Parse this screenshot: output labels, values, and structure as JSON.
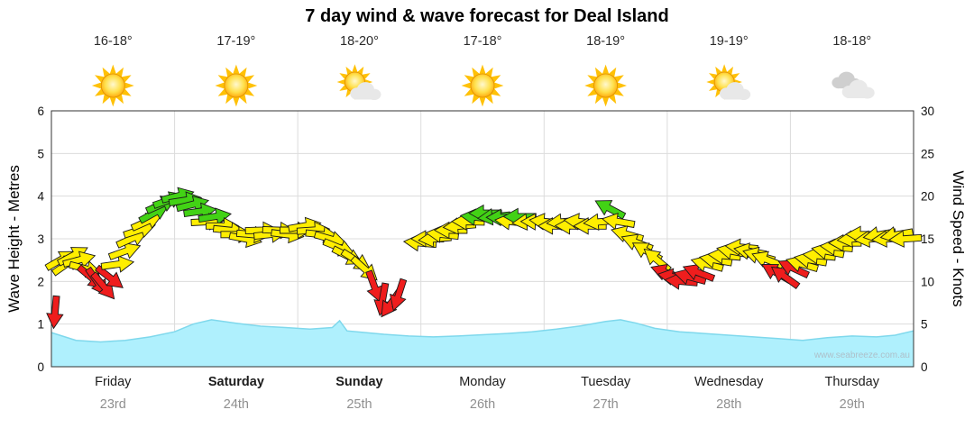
{
  "title": "7 day wind & wave forecast for Deal Island",
  "watermark": "www.seabreeze.com.au",
  "axes": {
    "left_title": "Wave Height - Metres",
    "right_title": "Wind Speed - Knots",
    "left_ticks": [
      0,
      1,
      2,
      3,
      4,
      5,
      6
    ],
    "right_ticks": [
      0,
      5,
      10,
      15,
      20,
      25,
      30
    ]
  },
  "days": [
    {
      "name": "Friday",
      "date": "23rd",
      "temp": "16-18°",
      "icon": "sunny",
      "weekend": false
    },
    {
      "name": "Saturday",
      "date": "24th",
      "temp": "17-19°",
      "icon": "sunny",
      "weekend": true
    },
    {
      "name": "Sunday",
      "date": "25th",
      "temp": "18-20°",
      "icon": "partly-cloudy",
      "weekend": true
    },
    {
      "name": "Monday",
      "date": "26th",
      "temp": "17-18°",
      "icon": "sunny",
      "weekend": false
    },
    {
      "name": "Tuesday",
      "date": "27th",
      "temp": "18-19°",
      "icon": "sunny",
      "weekend": false
    },
    {
      "name": "Wednesday",
      "date": "28th",
      "temp": "19-19°",
      "icon": "partly-cloudy",
      "weekend": false
    },
    {
      "name": "Thursday",
      "date": "29th",
      "temp": "18-18°",
      "icon": "cloudy",
      "weekend": false
    }
  ],
  "colors": {
    "yellow": "#ffee00",
    "red": "#ef1d1d",
    "green": "#42d215",
    "wave_fill": "#aff0fd",
    "wave_line": "#7fd8ec",
    "grid": "#dcdcdc",
    "frame": "#333333",
    "tick_text": "#111111"
  },
  "chart_data": {
    "type": "combo",
    "description": "7-day marine forecast: cyan area = wave height (m, left axis 0-6); colored arrows = wind speed (knots, right axis 0-30) and direction; arrow color: red < ~11 kn, yellow ~11-17 kn, green > ~17.5 kn",
    "categories": [
      "Friday 23rd",
      "Saturday 24th",
      "Sunday 25th",
      "Monday 26th",
      "Tuesday 27th",
      "Wednesday 28th",
      "Thursday 29th"
    ],
    "x_unit": "days from start of Friday 23rd (0 to 7)",
    "wave_height_m": {
      "ylim": [
        0,
        6
      ],
      "x": [
        0,
        0.2,
        0.4,
        0.6,
        0.8,
        1.0,
        1.15,
        1.3,
        1.5,
        1.7,
        1.9,
        2.1,
        2.28,
        2.34,
        2.4,
        2.55,
        2.7,
        2.9,
        3.1,
        3.3,
        3.5,
        3.7,
        3.9,
        4.1,
        4.3,
        4.5,
        4.62,
        4.75,
        4.9,
        5.1,
        5.3,
        5.5,
        5.7,
        5.9,
        6.1,
        6.3,
        6.5,
        6.7,
        6.85,
        7.0
      ],
      "y": [
        0.8,
        0.62,
        0.58,
        0.62,
        0.7,
        0.82,
        1.0,
        1.1,
        1.02,
        0.95,
        0.92,
        0.88,
        0.92,
        1.08,
        0.84,
        0.8,
        0.76,
        0.72,
        0.7,
        0.72,
        0.75,
        0.78,
        0.82,
        0.88,
        0.96,
        1.06,
        1.1,
        1.02,
        0.9,
        0.82,
        0.78,
        0.74,
        0.7,
        0.66,
        0.62,
        0.68,
        0.72,
        0.7,
        0.74,
        0.84
      ]
    },
    "wind_knots": {
      "ylim": [
        0,
        30
      ],
      "dir_convention": "degrees clockwise from east; arrow points where wind blows toward",
      "color_legend": {
        "y": "yellow",
        "r": "red",
        "g": "green"
      },
      "arrows": [
        [
          0.03,
          6.5,
          95,
          "r"
        ],
        [
          0.07,
          12.5,
          330,
          "y"
        ],
        [
          0.12,
          12,
          325,
          "y"
        ],
        [
          0.17,
          13,
          332,
          "y"
        ],
        [
          0.22,
          12.5,
          345,
          "y"
        ],
        [
          0.27,
          11.5,
          15,
          "y"
        ],
        [
          0.32,
          10.5,
          40,
          "r"
        ],
        [
          0.37,
          10,
          55,
          "r"
        ],
        [
          0.42,
          9.5,
          50,
          "r"
        ],
        [
          0.47,
          10.5,
          38,
          "r"
        ],
        [
          0.53,
          12,
          352,
          "y"
        ],
        [
          0.59,
          13.5,
          340,
          "y"
        ],
        [
          0.65,
          15,
          336,
          "y"
        ],
        [
          0.71,
          16,
          342,
          "y"
        ],
        [
          0.77,
          17,
          336,
          "y"
        ],
        [
          0.83,
          18,
          331,
          "g"
        ],
        [
          0.89,
          19,
          336,
          "g"
        ],
        [
          0.95,
          19.5,
          341,
          "g"
        ],
        [
          1.02,
          20,
          346,
          "g"
        ],
        [
          1.08,
          19.5,
          351,
          "g"
        ],
        [
          1.14,
          19,
          346,
          "g"
        ],
        [
          1.2,
          18.2,
          352,
          "g"
        ],
        [
          1.26,
          17,
          357,
          "y"
        ],
        [
          1.32,
          17.6,
          351,
          "g"
        ],
        [
          1.38,
          16.5,
          0,
          "y"
        ],
        [
          1.44,
          16,
          6,
          "y"
        ],
        [
          1.5,
          15.5,
          0,
          "y"
        ],
        [
          1.57,
          15,
          11,
          "y"
        ],
        [
          1.63,
          15.5,
          5,
          "y"
        ],
        [
          1.7,
          16,
          358,
          "y"
        ],
        [
          1.77,
          15.5,
          354,
          "y"
        ],
        [
          1.84,
          16,
          2,
          "y"
        ],
        [
          1.91,
          15.5,
          7,
          "y"
        ],
        [
          1.98,
          16,
          0,
          "y"
        ],
        [
          2.05,
          16.5,
          350,
          "y"
        ],
        [
          2.12,
          16,
          356,
          "y"
        ],
        [
          2.19,
          15.5,
          6,
          "y"
        ],
        [
          2.26,
          15,
          16,
          "y"
        ],
        [
          2.33,
          14,
          22,
          "y"
        ],
        [
          2.4,
          13,
          27,
          "y"
        ],
        [
          2.47,
          12.5,
          33,
          "y"
        ],
        [
          2.54,
          11.5,
          42,
          "y"
        ],
        [
          2.62,
          9.5,
          70,
          "r"
        ],
        [
          2.69,
          8,
          100,
          "r"
        ],
        [
          2.76,
          7.5,
          125,
          "r"
        ],
        [
          2.82,
          8.5,
          108,
          "r"
        ],
        [
          3.0,
          14.5,
          185,
          "y"
        ],
        [
          3.06,
          15,
          180,
          "y"
        ],
        [
          3.12,
          15,
          175,
          "y"
        ],
        [
          3.18,
          15.5,
          186,
          "y"
        ],
        [
          3.25,
          16,
          180,
          "y"
        ],
        [
          3.32,
          16.5,
          175,
          "y"
        ],
        [
          3.39,
          17,
          181,
          "y"
        ],
        [
          3.46,
          17.5,
          186,
          "g"
        ],
        [
          3.53,
          18,
          180,
          "g"
        ],
        [
          3.6,
          17.6,
          174,
          "g"
        ],
        [
          3.67,
          17.5,
          180,
          "g"
        ],
        [
          3.74,
          17,
          186,
          "y"
        ],
        [
          3.81,
          17.6,
          180,
          "g"
        ],
        [
          3.88,
          17,
          175,
          "y"
        ],
        [
          3.95,
          17,
          181,
          "y"
        ],
        [
          4.02,
          17,
          186,
          "y"
        ],
        [
          4.09,
          16.5,
          180,
          "y"
        ],
        [
          4.16,
          17,
          175,
          "y"
        ],
        [
          4.23,
          16.5,
          181,
          "y"
        ],
        [
          4.3,
          17,
          186,
          "y"
        ],
        [
          4.38,
          16.5,
          180,
          "y"
        ],
        [
          4.46,
          17,
          175,
          "y"
        ],
        [
          4.54,
          18.5,
          208,
          "g"
        ],
        [
          4.61,
          17,
          190,
          "y"
        ],
        [
          4.68,
          15.5,
          196,
          "y"
        ],
        [
          4.76,
          14.5,
          201,
          "y"
        ],
        [
          4.84,
          13.5,
          210,
          "y"
        ],
        [
          4.92,
          12.5,
          220,
          "y"
        ],
        [
          5.0,
          11,
          200,
          "r"
        ],
        [
          5.06,
          10.5,
          190,
          "r"
        ],
        [
          5.12,
          10,
          185,
          "r"
        ],
        [
          5.19,
          10.5,
          195,
          "r"
        ],
        [
          5.26,
          11,
          201,
          "r"
        ],
        [
          5.33,
          12,
          195,
          "y"
        ],
        [
          5.4,
          12.5,
          190,
          "y"
        ],
        [
          5.47,
          13,
          185,
          "y"
        ],
        [
          5.54,
          13.5,
          191,
          "y"
        ],
        [
          5.61,
          14,
          185,
          "y"
        ],
        [
          5.68,
          13.5,
          190,
          "y"
        ],
        [
          5.75,
          13,
          196,
          "y"
        ],
        [
          5.82,
          12.5,
          201,
          "y"
        ],
        [
          5.89,
          11,
          210,
          "r"
        ],
        [
          5.96,
          10.5,
          216,
          "r"
        ],
        [
          6.03,
          11.5,
          205,
          "r"
        ],
        [
          6.1,
          12,
          196,
          "y"
        ],
        [
          6.17,
          12.5,
          190,
          "y"
        ],
        [
          6.24,
          13,
          185,
          "y"
        ],
        [
          6.31,
          13.5,
          191,
          "y"
        ],
        [
          6.38,
          14,
          185,
          "y"
        ],
        [
          6.45,
          14.5,
          180,
          "y"
        ],
        [
          6.52,
          15,
          175,
          "y"
        ],
        [
          6.59,
          15.5,
          181,
          "y"
        ],
        [
          6.66,
          15,
          175,
          "y"
        ],
        [
          6.73,
          15.5,
          170,
          "y"
        ],
        [
          6.8,
          15,
          176,
          "y"
        ],
        [
          6.87,
          15.5,
          170,
          "y"
        ],
        [
          6.94,
          15,
          176,
          "y"
        ]
      ]
    }
  }
}
